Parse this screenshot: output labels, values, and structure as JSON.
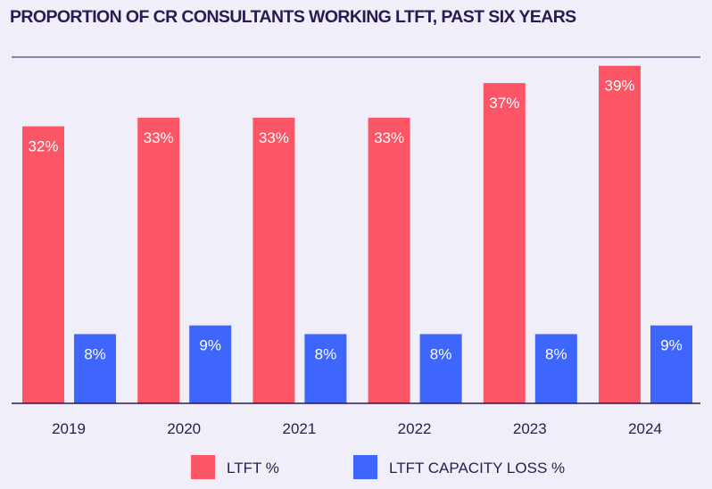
{
  "chart_data": {
    "type": "bar",
    "title": "PROPORTION OF CR CONSULTANTS WORKING LTFT, PAST SIX YEARS",
    "categories": [
      "2019",
      "2020",
      "2021",
      "2022",
      "2023",
      "2024"
    ],
    "series": [
      {
        "name": "LTFT %",
        "color": "#fc5565",
        "values": [
          32,
          33,
          33,
          33,
          37,
          39
        ],
        "labels": [
          "32%",
          "33%",
          "33%",
          "33%",
          "37%",
          "39%"
        ]
      },
      {
        "name": "LTFT CAPACITY LOSS %",
        "color": "#3f66fc",
        "values": [
          8,
          9,
          8,
          8,
          8,
          9
        ],
        "labels": [
          "8%",
          "9%",
          "8%",
          "8%",
          "8%",
          "9%"
        ]
      }
    ],
    "ylim": [
      0,
      40
    ],
    "grid": false,
    "legend_position": "bottom",
    "axis_color": "#2b1a4f"
  }
}
